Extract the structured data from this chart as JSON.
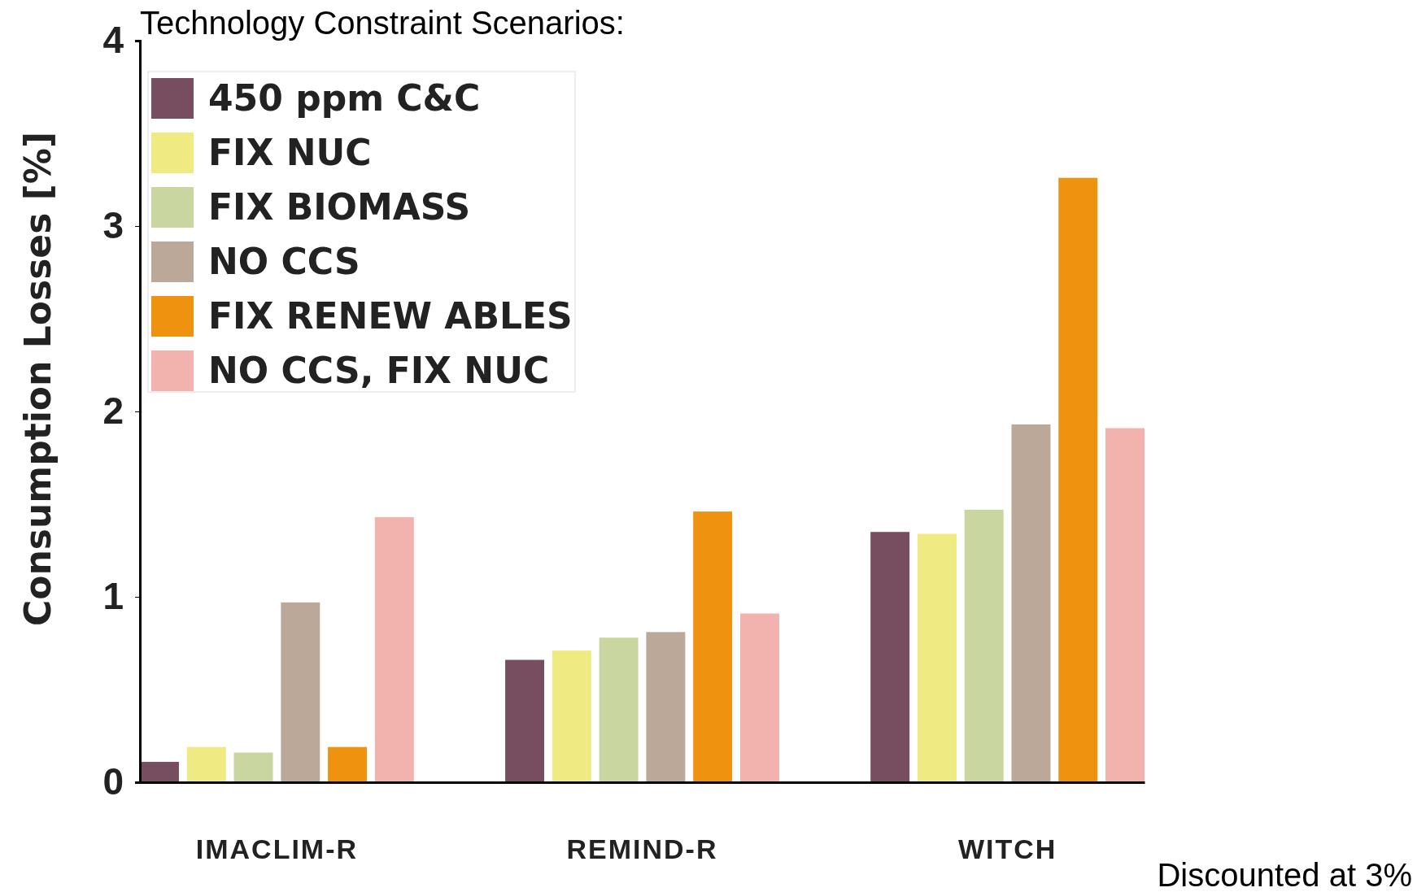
{
  "chart_data": {
    "type": "bar",
    "title": "Technology Constraint Scenarios:",
    "ylabel": "Consumption Losses [%]",
    "annotations": [
      "Discounted at 3%"
    ],
    "categories": [
      "IMACLIM-R",
      "REMIND-R",
      "WITCH"
    ],
    "series": [
      {
        "name": "450 ppm C&C",
        "color": "#774e60",
        "values": [
          0.11,
          0.66,
          1.35
        ]
      },
      {
        "name": "FIX NUC",
        "color": "#f0ea82",
        "values": [
          0.19,
          0.71,
          1.34
        ]
      },
      {
        "name": "FIX BIOMASS",
        "color": "#c9d6a0",
        "values": [
          0.16,
          0.78,
          1.47
        ]
      },
      {
        "name": "NO CCS",
        "color": "#bca898",
        "values": [
          0.97,
          0.81,
          1.93
        ]
      },
      {
        "name": "FIX RENEW ABLES",
        "color": "#ee920f",
        "values": [
          0.19,
          1.46,
          3.26
        ]
      },
      {
        "name": "NO CCS, FIX NUC",
        "color": "#f2b2ae",
        "values": [
          1.43,
          0.91,
          1.91
        ]
      }
    ],
    "ylim": [
      0,
      4
    ],
    "yticks": [
      0,
      1,
      2,
      3,
      4
    ],
    "legend": "top left"
  }
}
